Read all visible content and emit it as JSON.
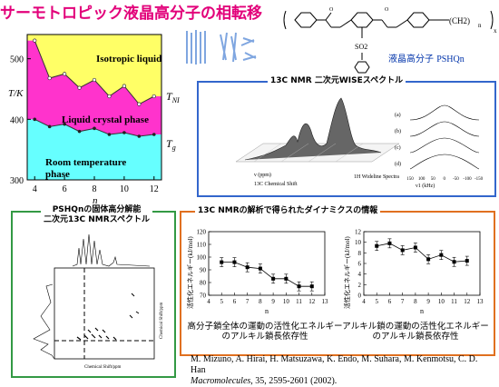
{
  "title": "サーモトロピック液晶高分子の相転移",
  "phase_chart": {
    "ylabel": "T/K",
    "xlabel": "n",
    "yticks": [
      "300",
      "400",
      "500"
    ],
    "xticks": [
      "4",
      "6",
      "8",
      "10",
      "12"
    ],
    "regions": {
      "isotropic": "Isotropic liquid",
      "lc": "Liquid crystal  phase",
      "room_line1": "Room temperature",
      "room_line2": "phase"
    },
    "curve_labels": {
      "tni": "T",
      "tni_sub": "NI",
      "tg": "T",
      "tg_sub": "g"
    },
    "colors": {
      "isotropic": "#ffff66",
      "lc": "#ff33cc",
      "room": "#66ffff"
    }
  },
  "chart_data": {
    "type": "line",
    "title": "",
    "xlabel": "n",
    "ylabel": "T/K",
    "x": [
      4,
      5,
      6,
      7,
      8,
      9,
      10,
      11,
      12
    ],
    "xlim": [
      3.5,
      12.5
    ],
    "ylim": [
      300,
      540
    ],
    "series": [
      {
        "name": "T_NI",
        "values": [
          530,
          468,
          475,
          452,
          465,
          438,
          455,
          425,
          438
        ]
      },
      {
        "name": "T_g",
        "values": [
          400,
          388,
          392,
          380,
          385,
          375,
          378,
          372,
          375
        ]
      }
    ]
  },
  "molecule": {
    "so2": "SO2",
    "subscript_n": "n",
    "subscript_x": "x",
    "ch2": "(CH2)",
    "name_ja": "液晶高分子 ",
    "name_en": "PSHQn"
  },
  "wise_box": {
    "label": "13C NMR 二次元WISEスペクトル",
    "axis_x": "13C Chemical Shift",
    "axis_y": "1H Wideline Spectra",
    "axis_ppm": "ν (ppm)",
    "axis_khz": "ν1 (kHz)",
    "tick_labels": [
      "150",
      "100",
      "50",
      "0",
      "-50",
      "-100",
      "-150"
    ],
    "trace_labels": [
      "(a)",
      "(b)",
      "(c)",
      "(d)"
    ]
  },
  "solid_box": {
    "label_line1": "PSHQnの固体高分解能",
    "label_line2": "二次元13C NMRスペクトル",
    "axis_x": "Chemical Shift/ppm",
    "axis_y": "Chemical Shift/ppm"
  },
  "dynamics_box": {
    "label": "13C NMRの解析で得られたダイナミクスの情報"
  },
  "ea_chart_left": {
    "ylabel": "活性化エネルギー(kJ/mol)",
    "xlabel": "n",
    "yticks": [
      "70",
      "80",
      "90",
      "100",
      "110",
      "120"
    ],
    "xticks": [
      "4",
      "5",
      "6",
      "7",
      "8",
      "9",
      "10",
      "11",
      "12",
      "13"
    ],
    "caption_line1": "高分子鎖全体の運動の活性化エネルギー",
    "caption_line2": "のアルキル鎖長依存性"
  },
  "ea_chart_right": {
    "ylabel": "活性化エネルギー(kJ/mol)",
    "xlabel": "n",
    "yticks": [
      "0",
      "2",
      "4",
      "6",
      "8",
      "10",
      "12"
    ],
    "xticks": [
      "4",
      "5",
      "6",
      "7",
      "8",
      "9",
      "10",
      "11",
      "12",
      "13"
    ],
    "caption_line1": "アルキル鎖の運動の活性化エネルギー",
    "caption_line2": "のアルキル鎖長依存性"
  },
  "ea_data": [
    {
      "type": "line",
      "x": [
        5,
        6,
        7,
        8,
        9,
        10,
        11,
        12
      ],
      "values": [
        96,
        96,
        92,
        91,
        83,
        83,
        77,
        77
      ],
      "ylim": [
        70,
        120
      ]
    },
    {
      "type": "line",
      "x": [
        5,
        6,
        7,
        8,
        9,
        10,
        11,
        12
      ],
      "values": [
        9.3,
        9.8,
        8.5,
        9.0,
        6.8,
        7.6,
        6.3,
        6.5
      ],
      "ylim": [
        0,
        12
      ]
    }
  ],
  "reference": {
    "line1": "M. Mizuno, A. Hirai, H. Matsuzawa, K. Endo, M. Suhara, M. Kenmotsu, C. D. Han",
    "journal": "Macromolecules",
    "rest": ", 35, 2595-2601 (2002)."
  }
}
